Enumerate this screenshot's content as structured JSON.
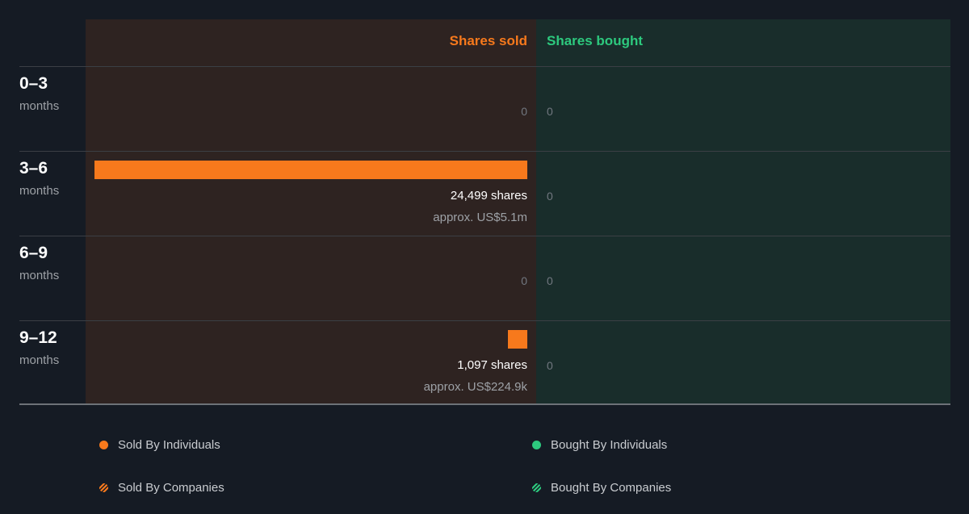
{
  "colors": {
    "sold": "#f7791c",
    "bought": "#2dc97e",
    "background": "#151b24",
    "sold_panel": "#2e2321",
    "bought_panel": "#192d2b"
  },
  "chart_data": {
    "type": "bar",
    "orientation": "horizontal-diverging",
    "column_headers": {
      "sold": "Shares sold",
      "bought": "Shares bought"
    },
    "categories": [
      {
        "label": "0–3",
        "unit": "months"
      },
      {
        "label": "3–6",
        "unit": "months"
      },
      {
        "label": "6–9",
        "unit": "months"
      },
      {
        "label": "9–12",
        "unit": "months"
      }
    ],
    "series": [
      {
        "name": "Sold By Individuals",
        "values": [
          0,
          24499,
          0,
          1097
        ]
      },
      {
        "name": "Sold By Companies",
        "values": [
          0,
          0,
          0,
          0
        ]
      },
      {
        "name": "Bought By Individuals",
        "values": [
          0,
          0,
          0,
          0
        ]
      },
      {
        "name": "Bought By Companies",
        "values": [
          0,
          0,
          0,
          0
        ]
      }
    ],
    "rows": [
      {
        "sold_text": "0",
        "sold_shares": "",
        "sold_approx": "",
        "bought_text": "0"
      },
      {
        "sold_text": "",
        "sold_shares": "24,499 shares",
        "sold_approx": "approx. US$5.1m",
        "bought_text": "0"
      },
      {
        "sold_text": "0",
        "sold_shares": "",
        "sold_approx": "",
        "bought_text": "0"
      },
      {
        "sold_text": "",
        "sold_shares": "1,097 shares",
        "sold_approx": "approx. US$224.9k",
        "bought_text": "0"
      }
    ],
    "legend": {
      "placement": "bottom",
      "items": [
        {
          "label": "Sold By Individuals",
          "icon": "solid-dot",
          "color": "#f7791c"
        },
        {
          "label": "Bought By Individuals",
          "icon": "solid-dot",
          "color": "#2dc97e"
        },
        {
          "label": "Sold By Companies",
          "icon": "hatched-dot",
          "color": "#f7791c"
        },
        {
          "label": "Bought By Companies",
          "icon": "hatched-dot",
          "color": "#2dc97e"
        }
      ]
    }
  }
}
